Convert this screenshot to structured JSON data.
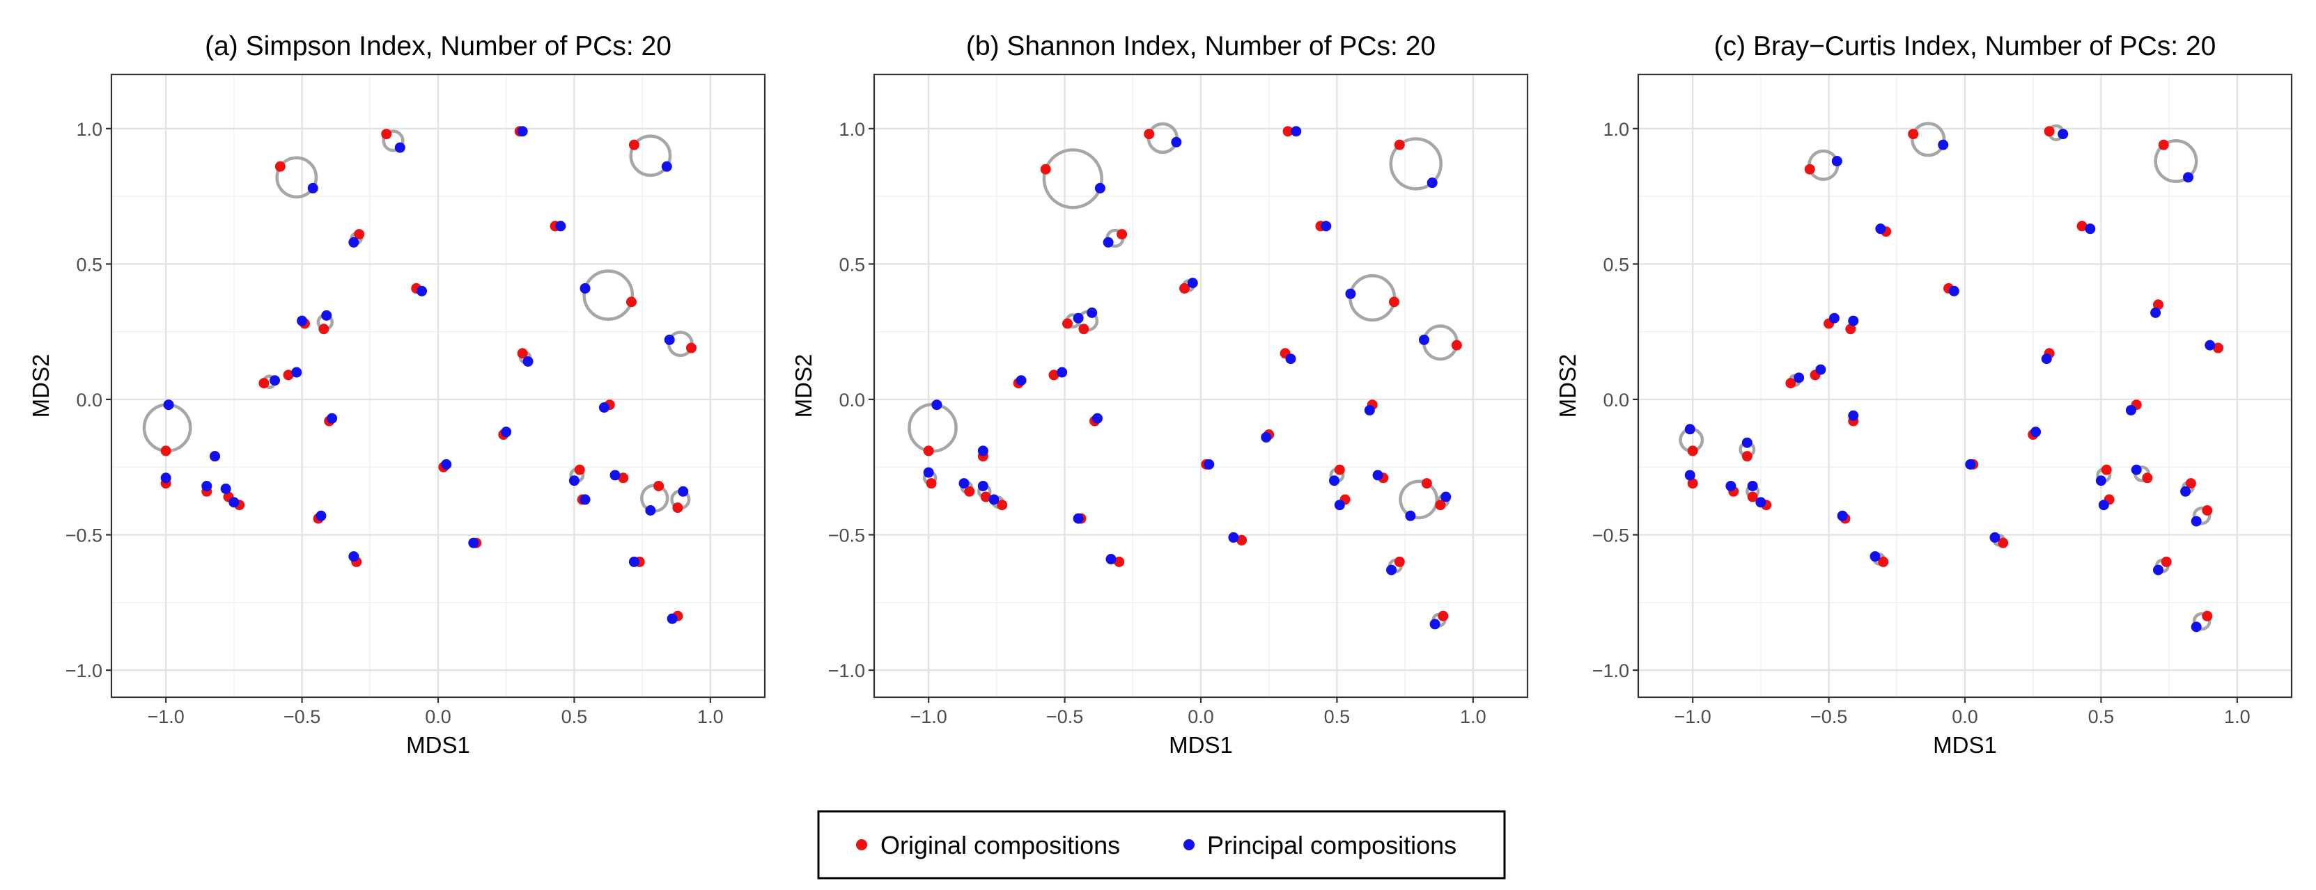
{
  "chart_data": [
    {
      "type": "scatter",
      "title": "(a) Simpson Index, Number of PCs: 20",
      "xlabel": "MDS1",
      "ylabel": "MDS2",
      "xlim": [
        -1.2,
        1.2
      ],
      "ylim": [
        -1.1,
        1.2
      ],
      "xticks": [
        -1.0,
        -0.5,
        0.0,
        0.5,
        1.0
      ],
      "yticks": [
        -1.0,
        -0.5,
        0.0,
        0.5,
        1.0
      ],
      "xtick_labels": [
        "−1.0",
        "−0.5",
        "0.0",
        "0.5",
        "1.0"
      ],
      "ytick_labels": [
        "−1.0",
        "−0.5",
        "0.0",
        "0.5",
        "1.0"
      ],
      "grid": true,
      "pairs": [
        [
          [
            -0.19,
            0.98
          ],
          [
            -0.14,
            0.93
          ]
        ],
        [
          [
            0.3,
            0.99
          ],
          [
            0.31,
            0.99
          ]
        ],
        [
          [
            0.72,
            0.94
          ],
          [
            0.84,
            0.86
          ]
        ],
        [
          [
            -0.58,
            0.86
          ],
          [
            -0.46,
            0.78
          ]
        ],
        [
          [
            -0.29,
            0.61
          ],
          [
            -0.31,
            0.58
          ]
        ],
        [
          [
            0.43,
            0.64
          ],
          [
            0.45,
            0.64
          ]
        ],
        [
          [
            -0.08,
            0.41
          ],
          [
            -0.06,
            0.4
          ]
        ],
        [
          [
            0.71,
            0.36
          ],
          [
            0.54,
            0.41
          ]
        ],
        [
          [
            0.93,
            0.19
          ],
          [
            0.85,
            0.22
          ]
        ],
        [
          [
            -0.49,
            0.28
          ],
          [
            -0.5,
            0.29
          ]
        ],
        [
          [
            -0.42,
            0.26
          ],
          [
            -0.41,
            0.31
          ]
        ],
        [
          [
            0.31,
            0.17
          ],
          [
            0.33,
            0.14
          ]
        ],
        [
          [
            -0.55,
            0.09
          ],
          [
            -0.52,
            0.1
          ]
        ],
        [
          [
            -0.64,
            0.06
          ],
          [
            -0.6,
            0.07
          ]
        ],
        [
          [
            -0.4,
            -0.08
          ],
          [
            -0.39,
            -0.07
          ]
        ],
        [
          [
            -1.0,
            -0.19
          ],
          [
            -0.99,
            -0.02
          ]
        ],
        [
          [
            -0.82,
            -0.21
          ],
          [
            -0.82,
            -0.21
          ]
        ],
        [
          [
            0.24,
            -0.13
          ],
          [
            0.25,
            -0.12
          ]
        ],
        [
          [
            0.63,
            -0.02
          ],
          [
            0.61,
            -0.03
          ]
        ],
        [
          [
            0.02,
            -0.25
          ],
          [
            0.03,
            -0.24
          ]
        ],
        [
          [
            -1.0,
            -0.31
          ],
          [
            -1.0,
            -0.29
          ]
        ],
        [
          [
            -0.85,
            -0.34
          ],
          [
            -0.85,
            -0.32
          ]
        ],
        [
          [
            -0.77,
            -0.36
          ],
          [
            -0.78,
            -0.33
          ]
        ],
        [
          [
            -0.73,
            -0.39
          ],
          [
            -0.75,
            -0.38
          ]
        ],
        [
          [
            -0.44,
            -0.44
          ],
          [
            -0.43,
            -0.43
          ]
        ],
        [
          [
            0.52,
            -0.26
          ],
          [
            0.5,
            -0.3
          ]
        ],
        [
          [
            0.53,
            -0.37
          ],
          [
            0.54,
            -0.37
          ]
        ],
        [
          [
            0.68,
            -0.29
          ],
          [
            0.65,
            -0.28
          ]
        ],
        [
          [
            0.81,
            -0.32
          ],
          [
            0.78,
            -0.41
          ]
        ],
        [
          [
            0.88,
            -0.4
          ],
          [
            0.9,
            -0.34
          ]
        ],
        [
          [
            0.14,
            -0.53
          ],
          [
            0.13,
            -0.53
          ]
        ],
        [
          [
            -0.3,
            -0.6
          ],
          [
            -0.31,
            -0.58
          ]
        ],
        [
          [
            0.74,
            -0.6
          ],
          [
            0.72,
            -0.6
          ]
        ],
        [
          [
            0.88,
            -0.8
          ],
          [
            0.86,
            -0.81
          ]
        ]
      ]
    },
    {
      "type": "scatter",
      "title": "(b) Shannon Index, Number of PCs: 20",
      "xlabel": "MDS1",
      "ylabel": "MDS2",
      "xlim": [
        -1.2,
        1.2
      ],
      "ylim": [
        -1.1,
        1.2
      ],
      "xticks": [
        -1.0,
        -0.5,
        0.0,
        0.5,
        1.0
      ],
      "yticks": [
        -1.0,
        -0.5,
        0.0,
        0.5,
        1.0
      ],
      "xtick_labels": [
        "−1.0",
        "−0.5",
        "0.0",
        "0.5",
        "1.0"
      ],
      "ytick_labels": [
        "−1.0",
        "−0.5",
        "0.0",
        "0.5",
        "1.0"
      ],
      "grid": true,
      "pairs": [
        [
          [
            -0.19,
            0.98
          ],
          [
            -0.09,
            0.95
          ]
        ],
        [
          [
            0.32,
            0.99
          ],
          [
            0.35,
            0.99
          ]
        ],
        [
          [
            0.73,
            0.94
          ],
          [
            0.85,
            0.8
          ]
        ],
        [
          [
            -0.57,
            0.85
          ],
          [
            -0.37,
            0.78
          ]
        ],
        [
          [
            -0.29,
            0.61
          ],
          [
            -0.34,
            0.58
          ]
        ],
        [
          [
            0.44,
            0.64
          ],
          [
            0.46,
            0.64
          ]
        ],
        [
          [
            -0.06,
            0.41
          ],
          [
            -0.03,
            0.43
          ]
        ],
        [
          [
            0.71,
            0.36
          ],
          [
            0.55,
            0.39
          ]
        ],
        [
          [
            0.94,
            0.2
          ],
          [
            0.82,
            0.22
          ]
        ],
        [
          [
            -0.49,
            0.28
          ],
          [
            -0.45,
            0.3
          ]
        ],
        [
          [
            -0.43,
            0.26
          ],
          [
            -0.4,
            0.32
          ]
        ],
        [
          [
            0.31,
            0.17
          ],
          [
            0.33,
            0.15
          ]
        ],
        [
          [
            -0.54,
            0.09
          ],
          [
            -0.51,
            0.1
          ]
        ],
        [
          [
            -0.67,
            0.06
          ],
          [
            -0.66,
            0.07
          ]
        ],
        [
          [
            -0.39,
            -0.08
          ],
          [
            -0.38,
            -0.07
          ]
        ],
        [
          [
            -1.0,
            -0.19
          ],
          [
            -0.97,
            -0.02
          ]
        ],
        [
          [
            -0.8,
            -0.21
          ],
          [
            -0.8,
            -0.19
          ]
        ],
        [
          [
            0.25,
            -0.13
          ],
          [
            0.24,
            -0.14
          ]
        ],
        [
          [
            0.63,
            -0.02
          ],
          [
            0.62,
            -0.04
          ]
        ],
        [
          [
            0.02,
            -0.24
          ],
          [
            0.03,
            -0.24
          ]
        ],
        [
          [
            -0.99,
            -0.31
          ],
          [
            -1.0,
            -0.27
          ]
        ],
        [
          [
            -0.85,
            -0.34
          ],
          [
            -0.87,
            -0.31
          ]
        ],
        [
          [
            -0.79,
            -0.36
          ],
          [
            -0.8,
            -0.32
          ]
        ],
        [
          [
            -0.73,
            -0.39
          ],
          [
            -0.76,
            -0.37
          ]
        ],
        [
          [
            -0.44,
            -0.44
          ],
          [
            -0.45,
            -0.44
          ]
        ],
        [
          [
            0.51,
            -0.26
          ],
          [
            0.49,
            -0.3
          ]
        ],
        [
          [
            0.53,
            -0.37
          ],
          [
            0.51,
            -0.39
          ]
        ],
        [
          [
            0.67,
            -0.29
          ],
          [
            0.65,
            -0.28
          ]
        ],
        [
          [
            0.83,
            -0.31
          ],
          [
            0.77,
            -0.43
          ]
        ],
        [
          [
            0.88,
            -0.39
          ],
          [
            0.9,
            -0.36
          ]
        ],
        [
          [
            0.15,
            -0.52
          ],
          [
            0.12,
            -0.51
          ]
        ],
        [
          [
            -0.3,
            -0.6
          ],
          [
            -0.33,
            -0.59
          ]
        ],
        [
          [
            0.73,
            -0.6
          ],
          [
            0.7,
            -0.63
          ]
        ],
        [
          [
            0.89,
            -0.8
          ],
          [
            0.86,
            -0.83
          ]
        ]
      ]
    },
    {
      "type": "scatter",
      "title": "(c) Bray−Curtis Index, Number of PCs: 20",
      "xlabel": "MDS1",
      "ylabel": "MDS2",
      "xlim": [
        -1.2,
        1.2
      ],
      "ylim": [
        -1.1,
        1.2
      ],
      "xticks": [
        -1.0,
        -0.5,
        0.0,
        0.5,
        1.0
      ],
      "yticks": [
        -1.0,
        -0.5,
        0.0,
        0.5,
        1.0
      ],
      "xtick_labels": [
        "−1.0",
        "−0.5",
        "0.0",
        "0.5",
        "1.0"
      ],
      "ytick_labels": [
        "−1.0",
        "−0.5",
        "0.0",
        "0.5",
        "1.0"
      ],
      "grid": true,
      "pairs": [
        [
          [
            -0.19,
            0.98
          ],
          [
            -0.08,
            0.94
          ]
        ],
        [
          [
            0.31,
            0.99
          ],
          [
            0.36,
            0.98
          ]
        ],
        [
          [
            0.73,
            0.94
          ],
          [
            0.82,
            0.82
          ]
        ],
        [
          [
            -0.57,
            0.85
          ],
          [
            -0.47,
            0.88
          ]
        ],
        [
          [
            -0.29,
            0.62
          ],
          [
            -0.31,
            0.63
          ]
        ],
        [
          [
            0.43,
            0.64
          ],
          [
            0.46,
            0.63
          ]
        ],
        [
          [
            -0.06,
            0.41
          ],
          [
            -0.04,
            0.4
          ]
        ],
        [
          [
            0.71,
            0.35
          ],
          [
            0.7,
            0.32
          ]
        ],
        [
          [
            0.93,
            0.19
          ],
          [
            0.9,
            0.2
          ]
        ],
        [
          [
            -0.5,
            0.28
          ],
          [
            -0.48,
            0.3
          ]
        ],
        [
          [
            -0.42,
            0.26
          ],
          [
            -0.41,
            0.29
          ]
        ],
        [
          [
            0.31,
            0.17
          ],
          [
            0.3,
            0.15
          ]
        ],
        [
          [
            -0.55,
            0.09
          ],
          [
            -0.53,
            0.11
          ]
        ],
        [
          [
            -0.64,
            0.06
          ],
          [
            -0.61,
            0.08
          ]
        ],
        [
          [
            -0.41,
            -0.08
          ],
          [
            -0.41,
            -0.06
          ]
        ],
        [
          [
            -1.0,
            -0.19
          ],
          [
            -1.01,
            -0.11
          ]
        ],
        [
          [
            -0.8,
            -0.21
          ],
          [
            -0.8,
            -0.16
          ]
        ],
        [
          [
            0.25,
            -0.13
          ],
          [
            0.26,
            -0.12
          ]
        ],
        [
          [
            0.63,
            -0.02
          ],
          [
            0.61,
            -0.04
          ]
        ],
        [
          [
            0.03,
            -0.24
          ],
          [
            0.02,
            -0.24
          ]
        ],
        [
          [
            -1.0,
            -0.31
          ],
          [
            -1.01,
            -0.28
          ]
        ],
        [
          [
            -0.85,
            -0.34
          ],
          [
            -0.86,
            -0.32
          ]
        ],
        [
          [
            -0.78,
            -0.36
          ],
          [
            -0.78,
            -0.32
          ]
        ],
        [
          [
            -0.73,
            -0.39
          ],
          [
            -0.75,
            -0.38
          ]
        ],
        [
          [
            -0.44,
            -0.44
          ],
          [
            -0.45,
            -0.43
          ]
        ],
        [
          [
            0.52,
            -0.26
          ],
          [
            0.5,
            -0.3
          ]
        ],
        [
          [
            0.53,
            -0.37
          ],
          [
            0.51,
            -0.39
          ]
        ],
        [
          [
            0.67,
            -0.29
          ],
          [
            0.63,
            -0.26
          ]
        ],
        [
          [
            0.83,
            -0.31
          ],
          [
            0.81,
            -0.34
          ]
        ],
        [
          [
            0.89,
            -0.41
          ],
          [
            0.85,
            -0.45
          ]
        ],
        [
          [
            0.14,
            -0.53
          ],
          [
            0.11,
            -0.51
          ]
        ],
        [
          [
            -0.3,
            -0.6
          ],
          [
            -0.33,
            -0.58
          ]
        ],
        [
          [
            0.74,
            -0.6
          ],
          [
            0.71,
            -0.63
          ]
        ],
        [
          [
            0.89,
            -0.8
          ],
          [
            0.85,
            -0.84
          ]
        ]
      ]
    }
  ],
  "legend": {
    "items": [
      {
        "label": "Original compositions",
        "color": "#ee1111"
      },
      {
        "label": "Principal compositions",
        "color": "#1111ee"
      }
    ]
  },
  "colors": {
    "original": "#ee1111",
    "principal": "#1111ee",
    "circle": "#a6a6a6"
  }
}
